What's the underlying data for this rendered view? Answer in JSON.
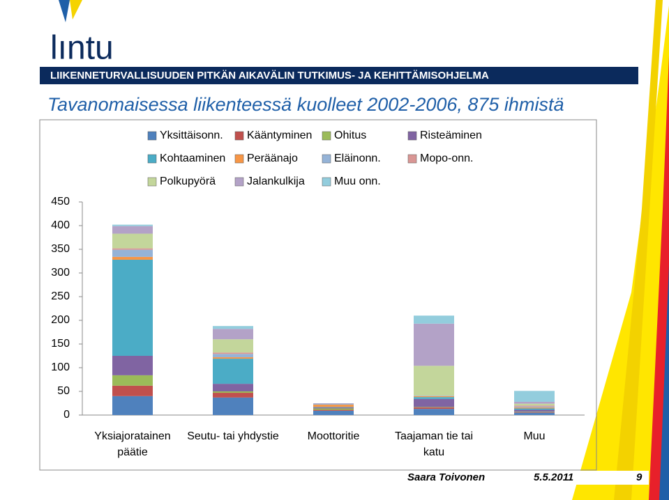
{
  "header": {
    "logo": "lıntu",
    "banner": "LIIKENNETURVALLISUUDEN PITKÄN AIKAVÄLIN TUTKIMUS- JA KEHITTÄMISOHJELMA"
  },
  "chart_data": {
    "type": "stacked_bar",
    "title": "Tavanomaisessa liikenteessä kuolleet 2002-2006, 875 ihmistä",
    "categories": [
      "Yksiajoratainen päätie",
      "Seutu- tai yhdystie",
      "Moottoritie",
      "Taajaman tie tai katu",
      "Muu"
    ],
    "series": [
      {
        "name": "Yksittäisonn.",
        "color": "#4f81bd",
        "values": [
          40,
          37,
          9,
          13,
          5
        ]
      },
      {
        "name": "Kääntyminen",
        "color": "#c0504d",
        "values": [
          22,
          10,
          2,
          3,
          1
        ]
      },
      {
        "name": "Ohitus",
        "color": "#9bbb59",
        "values": [
          22,
          3,
          3,
          1,
          1
        ]
      },
      {
        "name": "Risteäminen",
        "color": "#8064a2",
        "values": [
          41,
          16,
          2,
          17,
          4
        ]
      },
      {
        "name": "Kohtaaminen",
        "color": "#4bacc6",
        "values": [
          203,
          53,
          1,
          4,
          3
        ]
      },
      {
        "name": "Peräänajo",
        "color": "#f79646",
        "values": [
          6,
          3,
          5,
          2,
          2
        ]
      },
      {
        "name": "Eläinonn.",
        "color": "#95b3d7",
        "values": [
          15,
          7,
          2,
          1,
          2
        ]
      },
      {
        "name": "Mopo-onn.",
        "color": "#d99694",
        "values": [
          3,
          3,
          0,
          0,
          2
        ]
      },
      {
        "name": "Polkupyörä",
        "color": "#c3d69b",
        "values": [
          31,
          28,
          0,
          63,
          4
        ]
      },
      {
        "name": "Jalankulkija",
        "color": "#b3a2c7",
        "values": [
          16,
          22,
          1,
          89,
          4
        ]
      },
      {
        "name": "Muu onn.",
        "color": "#93cddd",
        "values": [
          3,
          6,
          0,
          17,
          23
        ]
      }
    ],
    "ylim": [
      0,
      450
    ],
    "yticks": [
      0,
      50,
      100,
      150,
      200,
      250,
      300,
      350,
      400,
      450
    ],
    "grid": false
  },
  "footer": {
    "author": "Saara Toivonen",
    "date": "5.5.2011",
    "page": "9"
  }
}
